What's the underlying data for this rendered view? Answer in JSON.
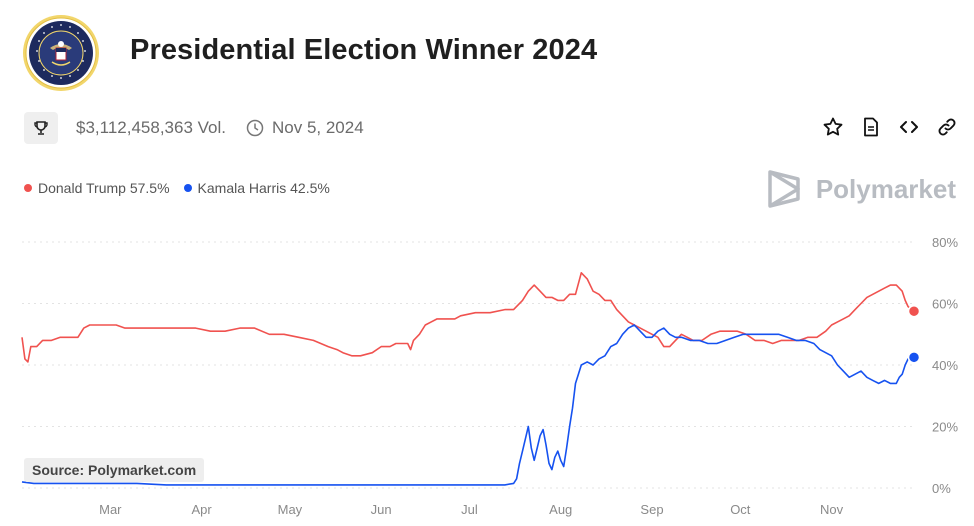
{
  "header": {
    "title": "Presidential Election Winner 2024",
    "seal_text": "SEAL OF THE PRESIDENT OF THE UNITED STATES"
  },
  "meta": {
    "volume": "$3,112,458,363 Vol.",
    "date": "Nov 5, 2024",
    "icons": [
      "trophy-icon",
      "clock-icon"
    ]
  },
  "actions": [
    "star-icon",
    "document-icon",
    "code-icon",
    "link-icon"
  ],
  "brand": {
    "name": "Polymarket",
    "icon": "polymarket-logo-icon"
  },
  "source": "Source: Polymarket.com",
  "legend": [
    {
      "name": "Donald Trump",
      "value": "57.5%",
      "color": "#f0524f"
    },
    {
      "name": "Kamala Harris",
      "value": "42.5%",
      "color": "#1652f0"
    }
  ],
  "chart_data": {
    "type": "line",
    "title": "Presidential Election Winner 2024",
    "x_axis": {
      "tick_labels": [
        "Mar",
        "Apr",
        "May",
        "Jun",
        "Jul",
        "Aug",
        "Sep",
        "Oct",
        "Nov"
      ]
    },
    "y_axis": {
      "tick_labels": [
        "0%",
        "20%",
        "40%",
        "60%",
        "80%"
      ],
      "ylim": [
        0,
        80
      ],
      "unit": "%"
    },
    "x_domain": {
      "start": "2024-02-01",
      "end": "2024-11-05",
      "unit": "days since 2024-01-01"
    },
    "grid": true,
    "series": [
      {
        "name": "Donald Trump",
        "color": "#f0524f",
        "points": [
          [
            31,
            49
          ],
          [
            32,
            42
          ],
          [
            33,
            41
          ],
          [
            34,
            46
          ],
          [
            36,
            46
          ],
          [
            38,
            48
          ],
          [
            41,
            48
          ],
          [
            44,
            49
          ],
          [
            47,
            49
          ],
          [
            50,
            49
          ],
          [
            52,
            52
          ],
          [
            54,
            53
          ],
          [
            57,
            53
          ],
          [
            60,
            53
          ],
          [
            63,
            53
          ],
          [
            66,
            52
          ],
          [
            70,
            52
          ],
          [
            75,
            52
          ],
          [
            80,
            52
          ],
          [
            85,
            52
          ],
          [
            90,
            52
          ],
          [
            95,
            51
          ],
          [
            100,
            51
          ],
          [
            105,
            52
          ],
          [
            110,
            52
          ],
          [
            115,
            50
          ],
          [
            120,
            50
          ],
          [
            125,
            49
          ],
          [
            130,
            48
          ],
          [
            135,
            46
          ],
          [
            138,
            45
          ],
          [
            140,
            44
          ],
          [
            143,
            43
          ],
          [
            146,
            43
          ],
          [
            150,
            44
          ],
          [
            153,
            46
          ],
          [
            156,
            46
          ],
          [
            158,
            47
          ],
          [
            160,
            47
          ],
          [
            162,
            47
          ],
          [
            163,
            45
          ],
          [
            164,
            48
          ],
          [
            166,
            50
          ],
          [
            168,
            53
          ],
          [
            170,
            54
          ],
          [
            172,
            55
          ],
          [
            175,
            55
          ],
          [
            178,
            55
          ],
          [
            180,
            56
          ],
          [
            185,
            57
          ],
          [
            190,
            57
          ],
          [
            195,
            58
          ],
          [
            198,
            58
          ],
          [
            201,
            61
          ],
          [
            203,
            64
          ],
          [
            205,
            66
          ],
          [
            207,
            64
          ],
          [
            209,
            62
          ],
          [
            211,
            62
          ],
          [
            213,
            61
          ],
          [
            215,
            61
          ],
          [
            217,
            63
          ],
          [
            219,
            63
          ],
          [
            221,
            70
          ],
          [
            223,
            68
          ],
          [
            225,
            64
          ],
          [
            227,
            63
          ],
          [
            229,
            61
          ],
          [
            231,
            61
          ],
          [
            233,
            58
          ],
          [
            235,
            56
          ],
          [
            237,
            54
          ],
          [
            239,
            53
          ],
          [
            241,
            52
          ],
          [
            243,
            51
          ],
          [
            245,
            50
          ],
          [
            247,
            49
          ],
          [
            249,
            46
          ],
          [
            251,
            46
          ],
          [
            253,
            48
          ],
          [
            255,
            50
          ],
          [
            257,
            49
          ],
          [
            259,
            48
          ],
          [
            262,
            48
          ],
          [
            265,
            50
          ],
          [
            268,
            51
          ],
          [
            271,
            51
          ],
          [
            274,
            51
          ],
          [
            277,
            50
          ],
          [
            280,
            48
          ],
          [
            283,
            48
          ],
          [
            286,
            47
          ],
          [
            289,
            48
          ],
          [
            292,
            48
          ],
          [
            295,
            48
          ],
          [
            298,
            49
          ],
          [
            301,
            49
          ],
          [
            304,
            51
          ],
          [
            306,
            53
          ],
          [
            308,
            54
          ],
          [
            310,
            55
          ],
          [
            312,
            56
          ],
          [
            314,
            58
          ],
          [
            316,
            60
          ],
          [
            318,
            62
          ],
          [
            320,
            63
          ],
          [
            322,
            64
          ],
          [
            324,
            65
          ],
          [
            326,
            66
          ],
          [
            328,
            66
          ],
          [
            330,
            64
          ],
          [
            331,
            61
          ],
          [
            332,
            59
          ],
          [
            334,
            57.5
          ]
        ]
      },
      {
        "name": "Kamala Harris",
        "color": "#1652f0",
        "points": [
          [
            31,
            2
          ],
          [
            35,
            1.5
          ],
          [
            40,
            1.5
          ],
          [
            50,
            1.5
          ],
          [
            60,
            1.5
          ],
          [
            70,
            1.5
          ],
          [
            80,
            1
          ],
          [
            90,
            1
          ],
          [
            100,
            1
          ],
          [
            110,
            1
          ],
          [
            120,
            1
          ],
          [
            130,
            1
          ],
          [
            140,
            1
          ],
          [
            150,
            1
          ],
          [
            160,
            1
          ],
          [
            170,
            1
          ],
          [
            180,
            1
          ],
          [
            190,
            1
          ],
          [
            195,
            1
          ],
          [
            198,
            1.5
          ],
          [
            199,
            3
          ],
          [
            200,
            8
          ],
          [
            201,
            12
          ],
          [
            202,
            16
          ],
          [
            203,
            20
          ],
          [
            204,
            13
          ],
          [
            205,
            9
          ],
          [
            206,
            13
          ],
          [
            207,
            17
          ],
          [
            208,
            19
          ],
          [
            209,
            14
          ],
          [
            210,
            8
          ],
          [
            211,
            6
          ],
          [
            212,
            10
          ],
          [
            213,
            12
          ],
          [
            214,
            9
          ],
          [
            215,
            7
          ],
          [
            216,
            13
          ],
          [
            217,
            20
          ],
          [
            218,
            26
          ],
          [
            219,
            34
          ],
          [
            220,
            37
          ],
          [
            221,
            40
          ],
          [
            223,
            41
          ],
          [
            225,
            40
          ],
          [
            227,
            42
          ],
          [
            229,
            43
          ],
          [
            231,
            46
          ],
          [
            233,
            47
          ],
          [
            235,
            50
          ],
          [
            237,
            52
          ],
          [
            239,
            53
          ],
          [
            241,
            51
          ],
          [
            243,
            49
          ],
          [
            245,
            49
          ],
          [
            247,
            51
          ],
          [
            249,
            52
          ],
          [
            251,
            50
          ],
          [
            253,
            49
          ],
          [
            255,
            49
          ],
          [
            258,
            48
          ],
          [
            261,
            48
          ],
          [
            264,
            47
          ],
          [
            267,
            47
          ],
          [
            270,
            48
          ],
          [
            273,
            49
          ],
          [
            276,
            50
          ],
          [
            279,
            50
          ],
          [
            282,
            50
          ],
          [
            285,
            50
          ],
          [
            288,
            50
          ],
          [
            291,
            49
          ],
          [
            294,
            48
          ],
          [
            297,
            48
          ],
          [
            300,
            47
          ],
          [
            302,
            45
          ],
          [
            304,
            44
          ],
          [
            306,
            43
          ],
          [
            308,
            40
          ],
          [
            310,
            38
          ],
          [
            312,
            36
          ],
          [
            314,
            37
          ],
          [
            316,
            38
          ],
          [
            318,
            36
          ],
          [
            320,
            35
          ],
          [
            322,
            34
          ],
          [
            324,
            35
          ],
          [
            326,
            34
          ],
          [
            328,
            34
          ],
          [
            329,
            36
          ],
          [
            330,
            37
          ],
          [
            331,
            40
          ],
          [
            332,
            42
          ],
          [
            334,
            42.5
          ]
        ]
      }
    ]
  }
}
